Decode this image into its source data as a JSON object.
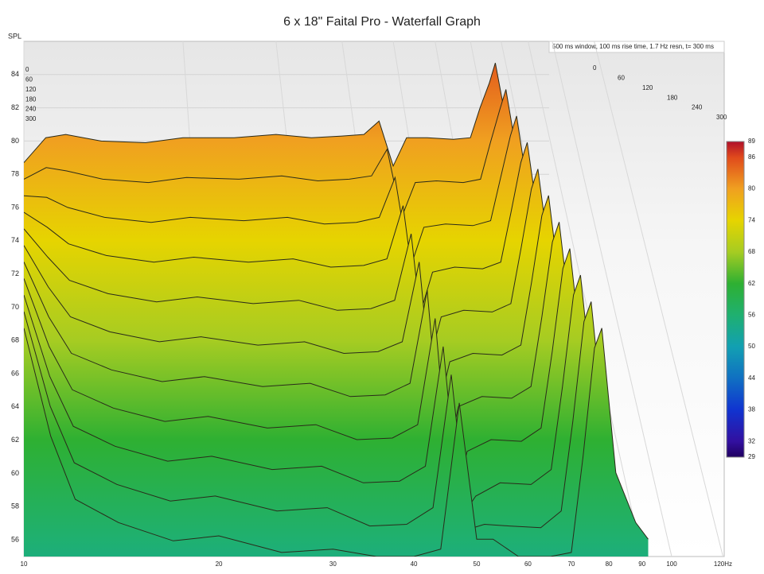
{
  "chart_data": {
    "type": "waterfall",
    "title": "6 x 18\" Faital Pro - Waterfall Graph",
    "y_label": "SPL",
    "annotation": "500 ms window, 100 ms rise time,  1.7 Hz resn, t= 300 ms",
    "x": [
      10,
      11,
      12,
      14,
      17,
      20,
      25,
      30,
      35,
      40,
      44,
      47,
      50,
      53,
      58,
      65,
      70,
      73,
      76,
      78,
      82,
      88,
      92
    ],
    "xlim": [
      10,
      120
    ],
    "xticks": [
      10,
      20,
      30,
      40,
      50,
      60,
      70,
      80,
      90,
      100,
      {
        "value": 120,
        "label": "120Hz"
      }
    ],
    "log_x": true,
    "ylim": [
      55,
      86
    ],
    "yticks": [
      56,
      58,
      60,
      62,
      64,
      66,
      68,
      70,
      72,
      74,
      76,
      78,
      80,
      82,
      84
    ],
    "zlim": [
      0,
      300
    ],
    "zticks": [
      0,
      60,
      120,
      180,
      240,
      300
    ],
    "grid": true,
    "colorbar_ticks": [
      89,
      86,
      80,
      74,
      68,
      62,
      56,
      50,
      44,
      38,
      32,
      29
    ],
    "colorbar_colors": [
      "#b0102a",
      "#e04a1c",
      "#f0a020",
      "#e6d400",
      "#a6cc22",
      "#2eb032",
      "#1fb070",
      "#12a0b2",
      "#1070c2",
      "#1034d0",
      "#3210a0",
      "#200060"
    ],
    "series": [
      {
        "values": [
          78.7,
          80.2,
          80.4,
          80.0,
          79.9,
          80.2,
          80.2,
          80.4,
          80.2,
          80.3,
          80.4,
          81.2,
          78.5,
          80.2,
          80.2,
          80.1,
          80.2,
          82.0,
          83.5,
          84.7,
          81.0,
          78.0,
          60.0
        ]
      },
      {
        "values": [
          77.8,
          78.5,
          78.3,
          77.8,
          77.6,
          77.9,
          77.8,
          78.0,
          77.7,
          77.8,
          78.0,
          79.6,
          75.5,
          77.6,
          77.7,
          77.6,
          77.8,
          80.0,
          82.0,
          83.2,
          79.0,
          75.5,
          59.5
        ]
      },
      {
        "values": [
          76.9,
          76.8,
          76.2,
          75.6,
          75.3,
          75.6,
          75.4,
          75.6,
          75.2,
          75.3,
          75.6,
          78.0,
          72.5,
          75.0,
          75.2,
          75.1,
          75.4,
          78.0,
          80.5,
          81.7,
          77.0,
          73.0,
          59.0
        ]
      },
      {
        "values": [
          76.0,
          75.1,
          74.1,
          73.4,
          73.0,
          73.3,
          73.0,
          73.2,
          72.7,
          72.8,
          73.2,
          76.4,
          69.5,
          72.4,
          72.7,
          72.6,
          73.0,
          76.0,
          79.0,
          80.2,
          75.0,
          70.5,
          58.5
        ]
      },
      {
        "values": [
          75.1,
          73.4,
          72.0,
          71.2,
          70.7,
          71.0,
          70.6,
          70.8,
          70.2,
          70.3,
          70.8,
          74.8,
          66.5,
          69.8,
          70.2,
          70.1,
          70.6,
          74.0,
          77.5,
          78.7,
          73.0,
          68.0,
          58.0
        ]
      },
      {
        "values": [
          74.2,
          71.7,
          69.9,
          69.0,
          68.4,
          68.7,
          68.2,
          68.4,
          67.7,
          67.8,
          68.4,
          73.2,
          63.5,
          67.2,
          67.7,
          67.6,
          68.2,
          72.0,
          76.0,
          77.2,
          71.0,
          65.5,
          57.5
        ]
      },
      {
        "values": [
          73.3,
          70.0,
          67.8,
          66.8,
          66.1,
          66.4,
          65.8,
          66.0,
          65.2,
          65.3,
          66.0,
          71.6,
          60.5,
          64.6,
          65.2,
          65.1,
          65.8,
          70.0,
          74.5,
          75.7,
          69.0,
          63.0,
          57.0
        ]
      },
      {
        "values": [
          72.4,
          68.3,
          65.7,
          64.6,
          63.8,
          64.1,
          63.4,
          63.6,
          62.7,
          62.8,
          63.6,
          70.0,
          58.5,
          62.0,
          62.7,
          62.6,
          63.4,
          68.0,
          73.0,
          74.2,
          67.0,
          60.5,
          57.0
        ]
      },
      {
        "values": [
          71.5,
          66.6,
          63.6,
          62.4,
          61.5,
          61.8,
          61.0,
          61.2,
          60.2,
          60.3,
          61.2,
          68.4,
          58.0,
          59.4,
          60.2,
          60.1,
          61.0,
          66.0,
          71.5,
          72.7,
          65.0,
          59.0,
          57.0
        ]
      },
      {
        "values": [
          70.6,
          64.9,
          61.5,
          60.2,
          59.2,
          59.5,
          58.6,
          58.8,
          57.7,
          57.8,
          58.8,
          66.8,
          57.5,
          57.8,
          57.7,
          57.6,
          58.6,
          64.0,
          70.0,
          71.2,
          63.0,
          58.5,
          57.0
        ]
      },
      {
        "values": [
          69.7,
          63.2,
          59.4,
          58.0,
          56.9,
          57.2,
          56.2,
          56.4,
          55.2,
          55.3,
          56.4,
          65.2,
          57.0,
          57.0,
          55.2,
          55.1,
          56.2,
          62.0,
          68.5,
          69.7,
          61.0,
          58.0,
          57.0
        ]
      }
    ]
  }
}
